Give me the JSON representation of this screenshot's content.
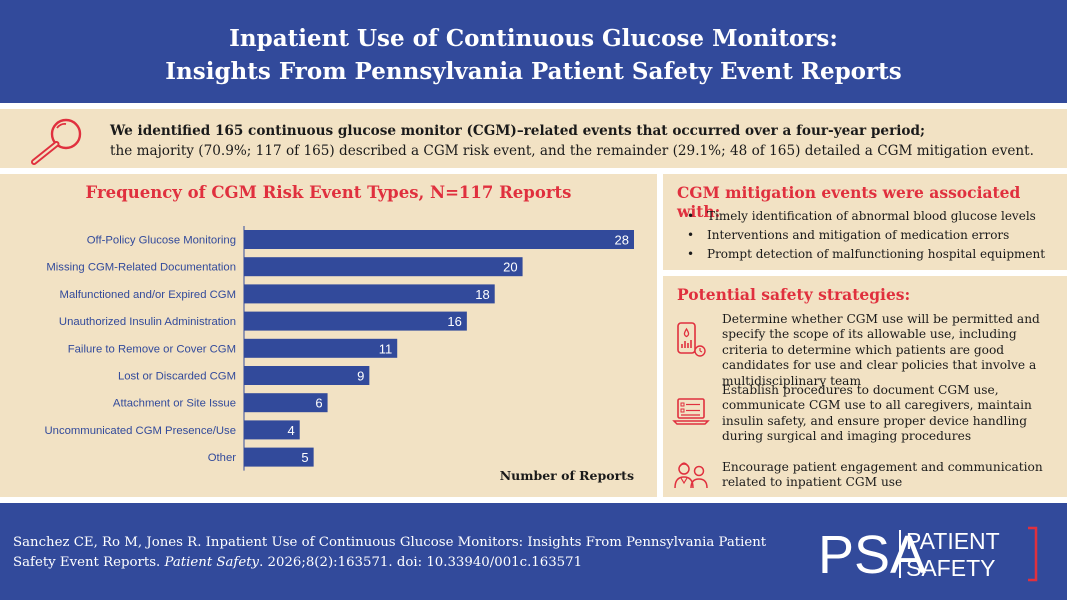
{
  "header": {
    "title_line1": "Inpatient Use of Continuous Glucose Monitors:",
    "title_line2": "Insights From Pennsylvania Patient Safety Event Reports"
  },
  "summary": {
    "icon": "magnifying-glass-icon",
    "bold_text": "We identified 165 continuous glucose monitor (CGM)–related events that occurred over a four-year period;",
    "normal_text": "the majority (70.9%; 117 of 165) described a CGM risk event, and the remainder (29.1%; 48 of 165) detailed a CGM mitigation event."
  },
  "chart_data": {
    "type": "bar",
    "orientation": "horizontal",
    "title": "Frequency of CGM Risk Event Types, N=117 Reports",
    "xlabel": "Number of Reports",
    "categories": [
      "Off-Policy Glucose Monitoring",
      "Missing CGM-Related Documentation",
      "Malfunctioned and/or Expired CGM",
      "Unauthorized Insulin Administration",
      "Failure to Remove or Cover CGM",
      "Lost or Discarded CGM",
      "Attachment or Site Issue",
      "Uncommunicated CGM Presence/Use",
      "Other"
    ],
    "values": [
      28,
      20,
      18,
      16,
      11,
      9,
      6,
      4,
      5
    ],
    "xlim": [
      0,
      28
    ],
    "data_labels": true,
    "grid": false,
    "bar_color": "#324a9b"
  },
  "mitigation": {
    "heading": "CGM mitigation events were associated with:",
    "items": [
      "Timely identification of abnormal blood glucose levels",
      "Interventions and mitigation of medication errors",
      "Prompt detection of malfunctioning hospital equipment"
    ]
  },
  "strategies": {
    "heading": "Potential safety strategies:",
    "items": [
      {
        "icon": "phone-glucose-chart-icon",
        "text": "Determine whether CGM use will be permitted and specify the scope of its allowable use, including criteria to determine which patients are good candidates for use and clear policies that involve a multidisciplinary team"
      },
      {
        "icon": "laptop-checklist-icon",
        "text": "Establish procedures to document CGM use, communicate CGM use to all caregivers, maintain insulin safety, and ensure proper device handling during surgical and imaging procedures"
      },
      {
        "icon": "patient-caregiver-icon",
        "text": "Encourage patient engagement and communication related to inpatient CGM use"
      }
    ]
  },
  "footer": {
    "citation_part1": "Sanchez CE, Ro M, Jones R. Inpatient Use of Continuous Glucose Monitors: Insights From Pennsylvania Patient Safety Event Reports. ",
    "journal": "Patient Safety",
    "citation_part2": ". 2026;8(2):163571. doi: 10.33940/001c.163571",
    "logo": {
      "letters": "PSA",
      "line1": "PATIENT",
      "line2": "SAFETY"
    }
  },
  "colors": {
    "navy": "#324a9b",
    "beige": "#f2e2c4",
    "accent_red": "#e0303e"
  }
}
